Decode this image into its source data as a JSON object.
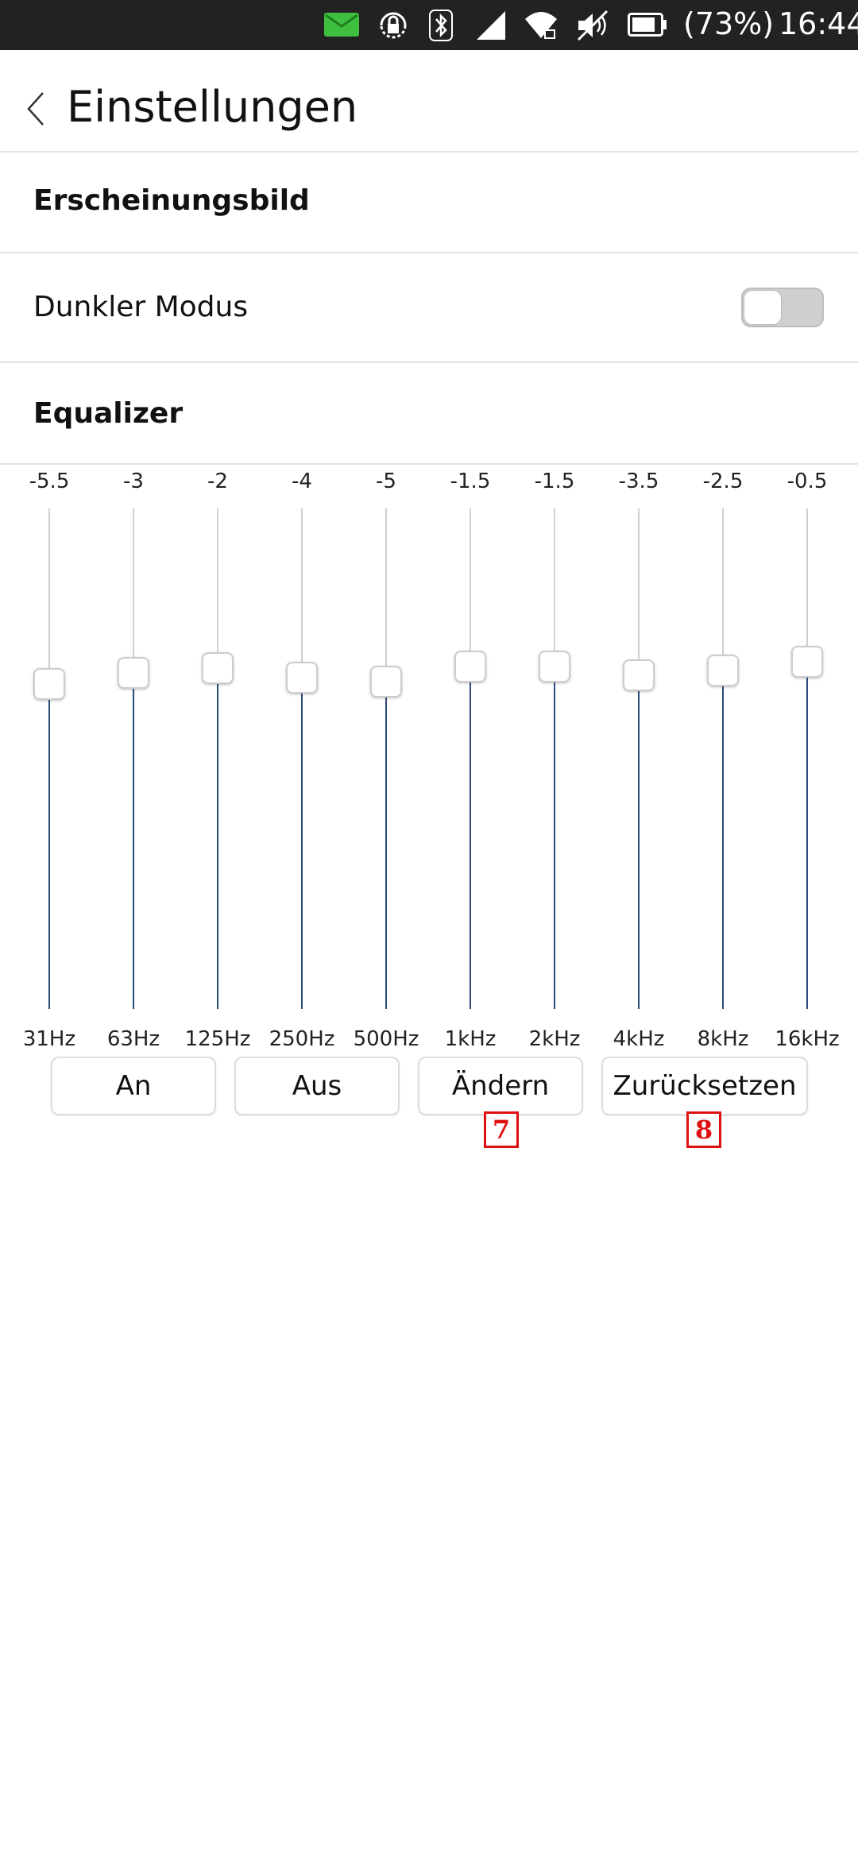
{
  "status_bar": {
    "icons": [
      "mail-icon",
      "rotation-lock-icon",
      "bluetooth-icon",
      "signal-icon",
      "wifi-icon",
      "mute-icon",
      "battery-icon"
    ],
    "battery_text": "(73%)",
    "time": "16:44",
    "mail_icon_color": "#3fbf3f"
  },
  "header": {
    "back_icon": "chevron-left-icon",
    "title": "Einstellungen"
  },
  "appearance": {
    "section_title": "Erscheinungsbild",
    "dark_mode_label": "Dunkler Modus",
    "dark_mode_enabled": false
  },
  "equalizer": {
    "section_title": "Equalizer",
    "bands": [
      {
        "label": "31Hz",
        "value": "-5.5"
      },
      {
        "label": "63Hz",
        "value": "-3"
      },
      {
        "label": "125Hz",
        "value": "-2"
      },
      {
        "label": "250Hz",
        "value": "-4"
      },
      {
        "label": "500Hz",
        "value": "-5"
      },
      {
        "label": "1kHz",
        "value": "-1.5"
      },
      {
        "label": "2kHz",
        "value": "-1.5"
      },
      {
        "label": "4kHz",
        "value": "-3.5"
      },
      {
        "label": "8kHz",
        "value": "-2.5"
      },
      {
        "label": "16kHz",
        "value": "-0.5"
      }
    ],
    "track_fill_color": "#2b4a7a",
    "track_empty_color": "#cfcfcf"
  },
  "buttons": {
    "on_label": "An",
    "off_label": "Aus",
    "change_label": "Ändern",
    "reset_label": "Zurücksetzen"
  },
  "badges": {
    "change_badge": "7",
    "reset_badge": "8"
  }
}
